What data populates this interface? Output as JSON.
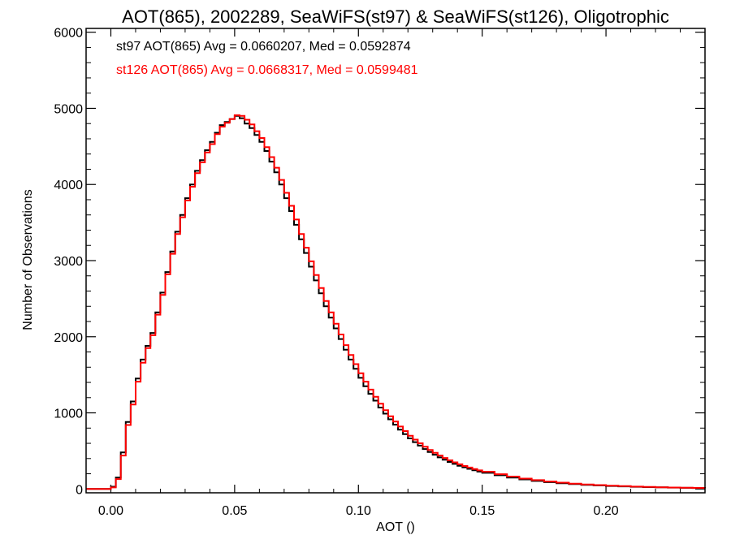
{
  "chart_data": {
    "type": "line",
    "title": "AOT(865), 2002289, SeaWiFS(st97) & SeaWiFS(st126), Oligotrophic",
    "xlabel": "AOT ()",
    "ylabel": "Number of Observations",
    "xlim": [
      -0.01,
      0.24
    ],
    "ylim": [
      -50,
      6050
    ],
    "xticks": [
      0.0,
      0.05,
      0.1,
      0.15,
      0.2
    ],
    "xtick_labels": [
      "0.00",
      "0.05",
      "0.10",
      "0.15",
      "0.20"
    ],
    "yticks": [
      0,
      1000,
      2000,
      3000,
      4000,
      5000,
      6000
    ],
    "ytick_labels": [
      "0",
      "1000",
      "2000",
      "3000",
      "4000",
      "5000",
      "6000"
    ],
    "grid": false,
    "annotations": [
      {
        "text": "st97 AOT(865) Avg = 0.0660207, Med = 0.0592874",
        "color": "#000000"
      },
      {
        "text": "st126 AOT(865) Avg = 0.0668317, Med = 0.0599481",
        "color": "#ff0000"
      }
    ],
    "x": [
      -0.01,
      -0.005,
      0.0,
      0.002,
      0.004,
      0.006,
      0.008,
      0.01,
      0.012,
      0.014,
      0.016,
      0.018,
      0.02,
      0.022,
      0.024,
      0.026,
      0.028,
      0.03,
      0.032,
      0.034,
      0.036,
      0.038,
      0.04,
      0.042,
      0.044,
      0.046,
      0.048,
      0.05,
      0.052,
      0.054,
      0.056,
      0.058,
      0.06,
      0.062,
      0.064,
      0.066,
      0.068,
      0.07,
      0.072,
      0.074,
      0.076,
      0.078,
      0.08,
      0.082,
      0.084,
      0.086,
      0.088,
      0.09,
      0.092,
      0.094,
      0.096,
      0.098,
      0.1,
      0.102,
      0.104,
      0.106,
      0.108,
      0.11,
      0.112,
      0.114,
      0.116,
      0.118,
      0.12,
      0.122,
      0.124,
      0.126,
      0.128,
      0.13,
      0.132,
      0.134,
      0.136,
      0.138,
      0.14,
      0.142,
      0.144,
      0.146,
      0.148,
      0.15,
      0.155,
      0.16,
      0.165,
      0.17,
      0.175,
      0.18,
      0.185,
      0.19,
      0.195,
      0.2,
      0.205,
      0.21,
      0.215,
      0.22,
      0.225,
      0.23,
      0.235,
      0.24
    ],
    "series": [
      {
        "color": "#000000",
        "values": [
          0,
          0,
          30,
          150,
          480,
          880,
          1150,
          1450,
          1700,
          1880,
          2050,
          2320,
          2580,
          2850,
          3120,
          3380,
          3600,
          3820,
          4000,
          4180,
          4320,
          4450,
          4560,
          4680,
          4780,
          4820,
          4860,
          4900,
          4870,
          4800,
          4740,
          4650,
          4560,
          4440,
          4300,
          4160,
          4000,
          3820,
          3650,
          3470,
          3280,
          3100,
          2920,
          2740,
          2570,
          2400,
          2250,
          2110,
          1970,
          1830,
          1700,
          1580,
          1460,
          1350,
          1250,
          1160,
          1070,
          990,
          915,
          845,
          780,
          720,
          665,
          615,
          570,
          525,
          485,
          450,
          415,
          385,
          355,
          330,
          305,
          285,
          265,
          245,
          228,
          212,
          180,
          150,
          126,
          106,
          90,
          76,
          64,
          55,
          47,
          40,
          34,
          29,
          25,
          21,
          18,
          15,
          13,
          11
        ]
      },
      {
        "color": "#ff0000",
        "values": [
          0,
          0,
          20,
          130,
          440,
          840,
          1110,
          1410,
          1660,
          1850,
          2020,
          2290,
          2550,
          2820,
          3090,
          3350,
          3570,
          3790,
          3970,
          4150,
          4290,
          4420,
          4530,
          4660,
          4760,
          4810,
          4860,
          4910,
          4900,
          4850,
          4790,
          4700,
          4610,
          4490,
          4360,
          4220,
          4060,
          3890,
          3720,
          3540,
          3350,
          3170,
          2990,
          2810,
          2640,
          2470,
          2320,
          2170,
          2030,
          1890,
          1760,
          1640,
          1520,
          1410,
          1305,
          1210,
          1120,
          1035,
          955,
          885,
          820,
          760,
          700,
          648,
          600,
          555,
          513,
          475,
          440,
          407,
          377,
          350,
          324,
          302,
          282,
          262,
          244,
          227,
          194,
          163,
          137,
          116,
          98,
          83,
          70,
          60,
          51,
          43,
          37,
          31,
          27,
          23,
          19,
          16,
          14,
          12
        ]
      }
    ]
  }
}
